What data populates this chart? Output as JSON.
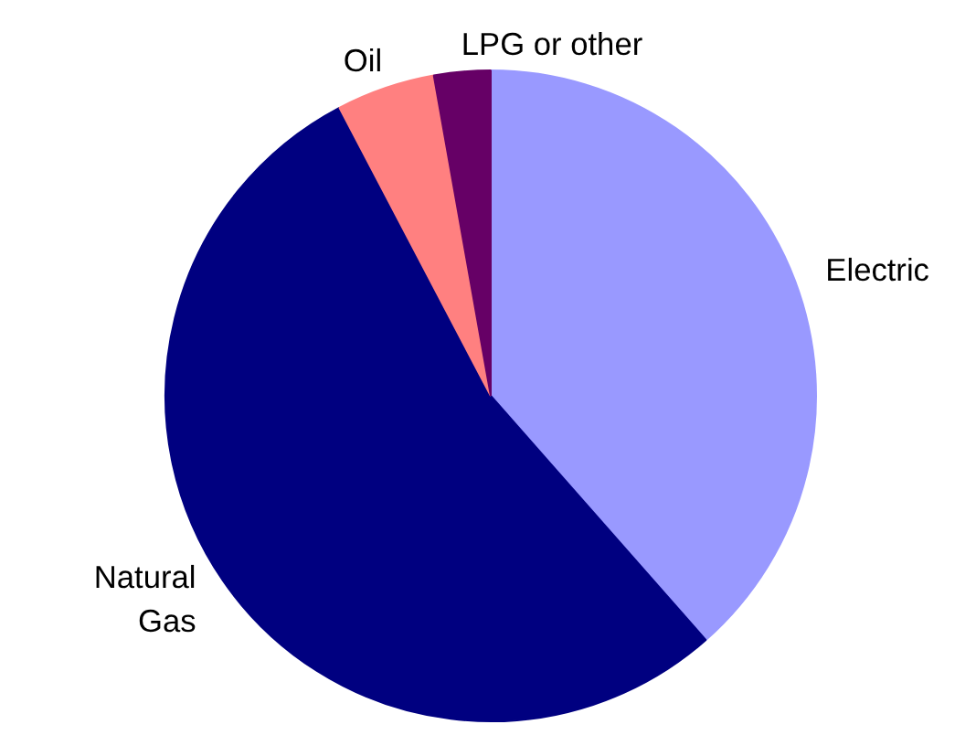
{
  "chart_data": {
    "type": "pie",
    "categories": [
      "Electric",
      "Natural Gas",
      "Oil",
      "LPG or other"
    ],
    "values": [
      38.5,
      53.8,
      4.9,
      2.8
    ],
    "colors": [
      "#9999ff",
      "#000080",
      "#ff8080",
      "#660066"
    ],
    "legend": false
  }
}
